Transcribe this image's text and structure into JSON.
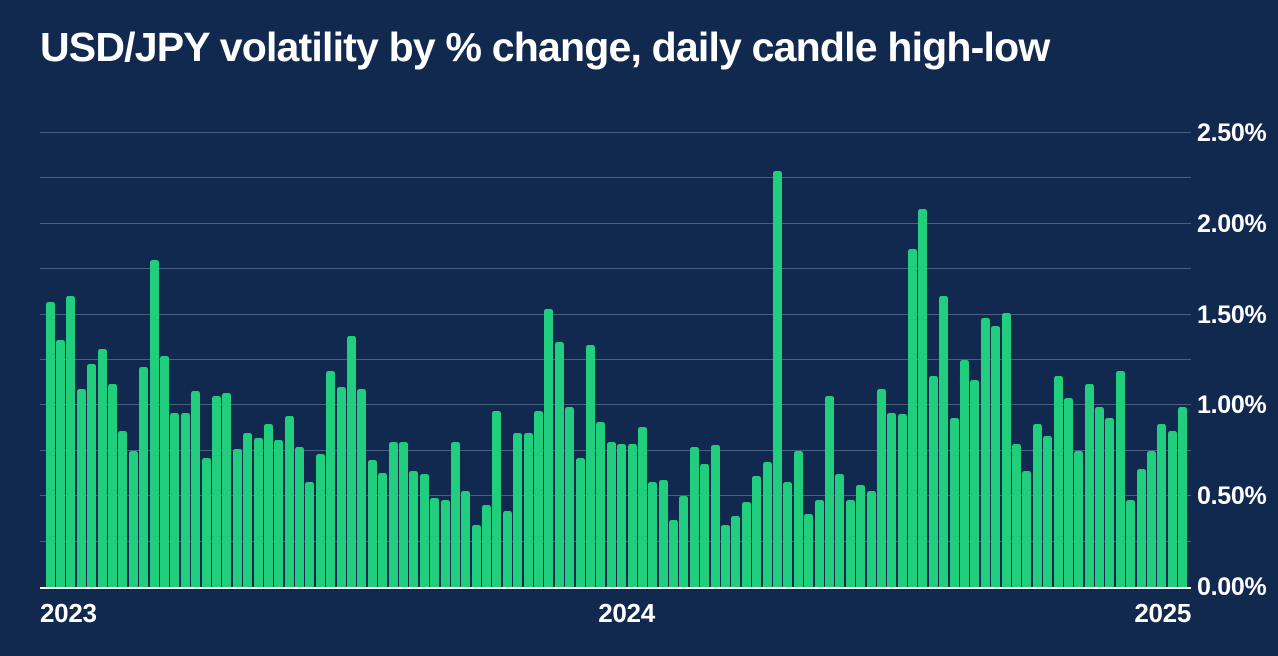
{
  "chart": {
    "title": "USD/JPY volatility by % change, daily candle high-low"
  },
  "chart_data": {
    "type": "bar",
    "title": "USD/JPY volatility by % change, daily candle high-low",
    "ylabel": "",
    "xlabel": "",
    "ylim": [
      0,
      2.5
    ],
    "y_tick_step_pct": 0.5,
    "gridline_step_pct": 0.25,
    "grid": true,
    "y_axis_side": "right",
    "y_ticks": [
      {
        "value": 2.5,
        "label": "2.50%"
      },
      {
        "value": 2.0,
        "label": "2.00%"
      },
      {
        "value": 1.5,
        "label": "1.50%"
      },
      {
        "value": 1.0,
        "label": "1.00%"
      },
      {
        "value": 0.5,
        "label": "0.50%"
      },
      {
        "value": 0.0,
        "label": "0.00%"
      }
    ],
    "x_year_labels": [
      {
        "label": "2023",
        "align": "left",
        "frac": 0.0
      },
      {
        "label": "2024",
        "align": "left",
        "frac": 0.485
      },
      {
        "label": "2025",
        "align": "right",
        "frac": 1.0
      }
    ],
    "values_unit": "percent",
    "values": [
      1.57,
      1.36,
      1.6,
      1.09,
      1.23,
      1.31,
      1.12,
      0.86,
      0.75,
      1.21,
      1.8,
      1.27,
      0.96,
      0.96,
      1.08,
      0.71,
      1.05,
      1.07,
      0.76,
      0.85,
      0.82,
      0.9,
      0.81,
      0.94,
      0.77,
      0.58,
      0.73,
      1.19,
      1.1,
      1.38,
      1.09,
      0.7,
      0.63,
      0.8,
      0.8,
      0.64,
      0.62,
      0.49,
      0.48,
      0.8,
      0.53,
      0.34,
      0.45,
      0.97,
      0.42,
      0.85,
      0.85,
      0.97,
      1.53,
      1.35,
      0.99,
      0.71,
      1.33,
      0.91,
      0.8,
      0.79,
      0.79,
      0.88,
      0.58,
      0.59,
      0.37,
      0.5,
      0.77,
      0.68,
      0.78,
      0.34,
      0.39,
      0.47,
      0.61,
      0.69,
      2.29,
      0.58,
      0.75,
      0.4,
      0.48,
      1.05,
      0.62,
      0.48,
      0.56,
      0.53,
      1.09,
      0.96,
      0.95,
      1.86,
      2.08,
      1.16,
      1.6,
      0.93,
      1.25,
      1.14,
      1.48,
      1.44,
      1.51,
      0.79,
      0.64,
      0.9,
      0.83,
      1.16,
      1.04,
      0.75,
      1.12,
      0.99,
      0.93,
      1.19,
      0.48,
      0.65,
      0.75,
      0.9,
      0.86,
      0.99
    ],
    "colors": {
      "background": "#12294f",
      "bar": "#21ce7d",
      "gridline": "#8fa3bd",
      "axis_line": "#ffffff",
      "text": "#ffffff"
    },
    "legend": null
  }
}
